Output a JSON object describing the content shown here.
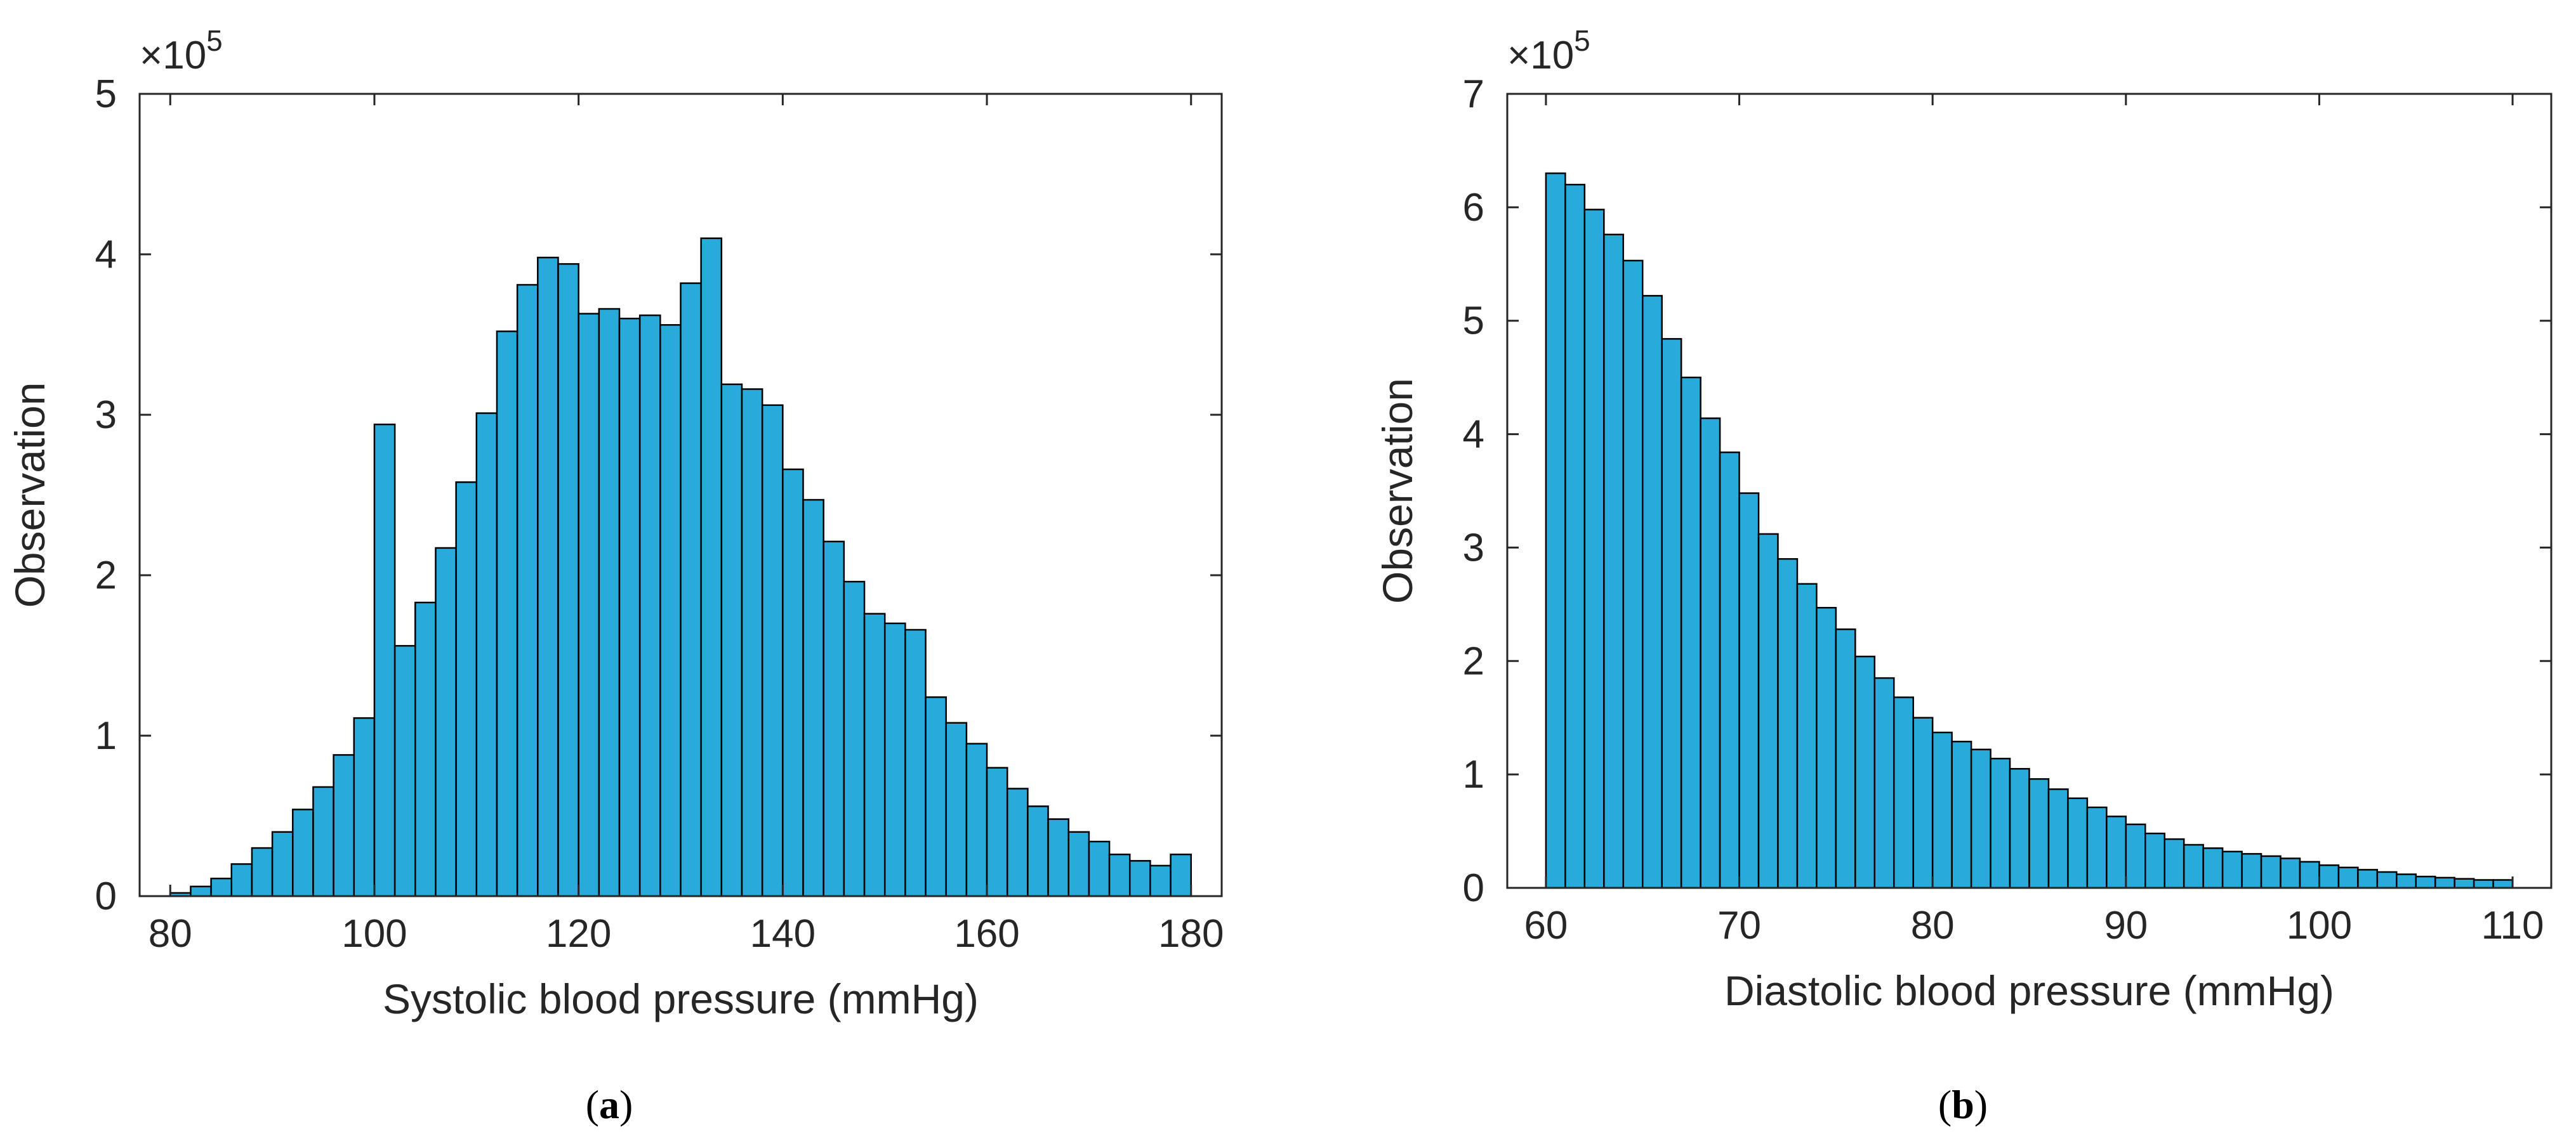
{
  "chart_data": [
    {
      "type": "bar",
      "subtype": "histogram",
      "title": "",
      "xlabel": "Systolic blood pressure (mmHg)",
      "ylabel": "Observation",
      "y_exponent_label": "×10",
      "y_exponent_power": "5",
      "xlim": [
        77,
        183
      ],
      "ylim": [
        0,
        500000
      ],
      "xticks": [
        80,
        100,
        120,
        140,
        160,
        180
      ],
      "yticks": [
        0,
        1,
        2,
        3,
        4,
        5
      ],
      "bin_width": 2,
      "bin_left_edges": [
        80,
        82,
        84,
        86,
        88,
        90,
        92,
        94,
        96,
        98,
        100,
        102,
        104,
        106,
        108,
        110,
        112,
        114,
        116,
        118,
        120,
        122,
        124,
        126,
        128,
        130,
        132,
        134,
        136,
        138,
        140,
        142,
        144,
        146,
        148,
        150,
        152,
        154,
        156,
        158,
        160,
        162,
        164,
        166,
        168,
        170,
        172,
        174,
        176,
        178
      ],
      "values": [
        2000,
        6000,
        11000,
        20000,
        30000,
        40000,
        54000,
        68000,
        88000,
        111000,
        294000,
        156000,
        183000,
        217000,
        258000,
        301000,
        352000,
        381000,
        398000,
        394000,
        363000,
        366000,
        360000,
        362000,
        356000,
        382000,
        410000,
        319000,
        316000,
        306000,
        266000,
        247000,
        221000,
        196000,
        176000,
        170000,
        166000,
        124000,
        108000,
        95000,
        80000,
        67000,
        56000,
        48000,
        40000,
        34000,
        26000,
        22000,
        19000,
        26000
      ],
      "bar_color": "#28ABDA",
      "grid": false,
      "panel_label": "a"
    },
    {
      "type": "bar",
      "subtype": "histogram",
      "title": "",
      "xlabel": "Diastolic blood pressure (mmHg)",
      "ylabel": "Observation",
      "y_exponent_label": "×10",
      "y_exponent_power": "5",
      "xlim": [
        58,
        112
      ],
      "ylim": [
        0,
        700000
      ],
      "xticks": [
        60,
        70,
        80,
        90,
        100,
        110
      ],
      "yticks": [
        0,
        1,
        2,
        3,
        4,
        5,
        6,
        7
      ],
      "bin_width": 1,
      "bin_left_edges": [
        60,
        61,
        62,
        63,
        64,
        65,
        66,
        67,
        68,
        69,
        70,
        71,
        72,
        73,
        74,
        75,
        76,
        77,
        78,
        79,
        80,
        81,
        82,
        83,
        84,
        85,
        86,
        87,
        88,
        89,
        90,
        91,
        92,
        93,
        94,
        95,
        96,
        97,
        98,
        99,
        100,
        101,
        102,
        103,
        104,
        105,
        106,
        107,
        108,
        109
      ],
      "values": [
        630000,
        620000,
        598000,
        576000,
        553000,
        522000,
        484000,
        450000,
        414000,
        384000,
        348000,
        312000,
        290000,
        268000,
        247000,
        228000,
        204000,
        185000,
        168000,
        150000,
        137000,
        129000,
        122000,
        114000,
        105000,
        96000,
        87000,
        79000,
        71000,
        63000,
        56000,
        48000,
        43000,
        38000,
        35000,
        32000,
        30000,
        28000,
        26000,
        23000,
        20000,
        18000,
        16000,
        14000,
        12000,
        10000,
        9000,
        8000,
        7000,
        7000
      ],
      "bar_color": "#28ABDA",
      "grid": false,
      "panel_label": "b"
    }
  ]
}
